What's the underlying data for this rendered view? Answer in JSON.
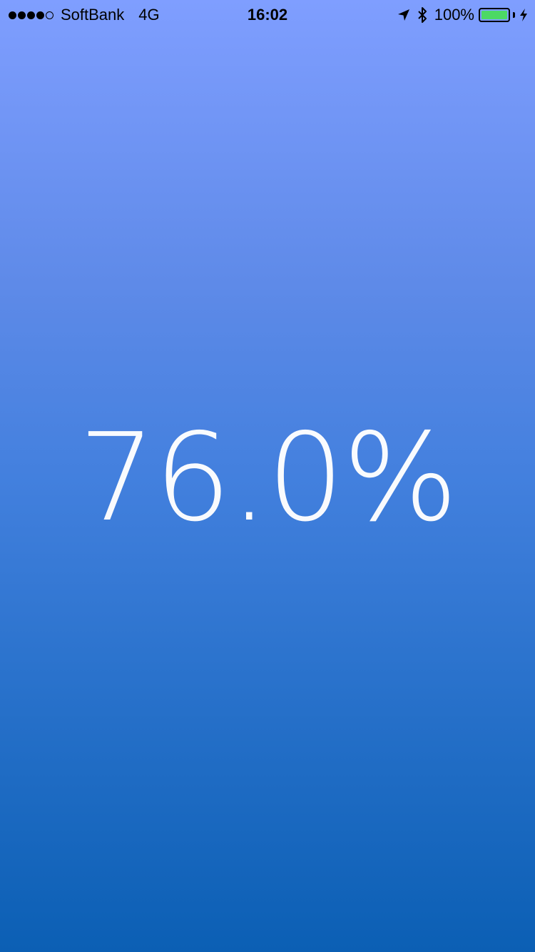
{
  "status_bar": {
    "signal_bars_filled": 4,
    "signal_bars_total": 5,
    "carrier": "SoftBank",
    "network": "4G",
    "time": "16:02",
    "location_icon": "location-arrow-icon",
    "bluetooth_icon": "bluetooth-icon",
    "battery_percent": "100%",
    "battery_level": 1.0,
    "charging_icon": "charging-bolt-icon"
  },
  "main": {
    "value": "76.0%"
  },
  "colors": {
    "gradient_top": "#7f9eff",
    "gradient_bottom": "#0b5fb4",
    "battery_fill": "#4cd964",
    "text": "#ffffff"
  }
}
